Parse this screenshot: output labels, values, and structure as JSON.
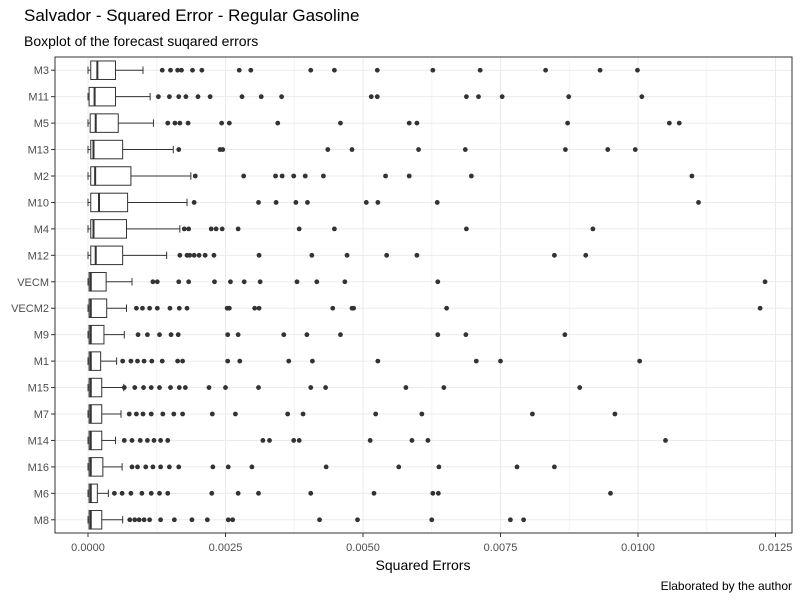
{
  "title": "Salvador - Squared Error - Regular Gasoline",
  "subtitle": "Boxplot of the forecast suqared errors",
  "caption": "Elaborated by the author",
  "colors": {
    "box_line": "#333333",
    "outlier": "#333333",
    "grid": "#ebebeb",
    "panel_border": "#333333"
  },
  "chart_data": {
    "type": "boxplot",
    "orientation": "horizontal",
    "title": "Salvador - Squared Error - Regular Gasoline",
    "subtitle": "Boxplot of the forecast suqared errors",
    "xlabel": "Squared Errors",
    "ylabel": "",
    "xlim": [
      -0.0006,
      0.0128
    ],
    "x_ticks": [
      0,
      0.0025,
      0.005,
      0.0075,
      0.01,
      0.0125
    ],
    "x_tick_labels": [
      "0.0000",
      "0.0025",
      "0.0050",
      "0.0075",
      "0.0100",
      "0.0125"
    ],
    "grid": true,
    "categories": [
      "M3",
      "M11",
      "M5",
      "M13",
      "M2",
      "M10",
      "M4",
      "M12",
      "VECM",
      "VECM2",
      "M9",
      "M1",
      "M15",
      "M7",
      "M14",
      "M16",
      "M6",
      "M8"
    ],
    "series": [
      {
        "label": "M3",
        "min": 0,
        "q1": 5e-05,
        "median": 0.00017,
        "q3": 0.0005,
        "max": 0.001,
        "outliers": [
          0.00135,
          0.0015,
          0.00163,
          0.0017,
          0.0019,
          0.00207,
          0.00275,
          0.00296,
          0.00405,
          0.00448,
          0.00526,
          0.00627,
          0.00713,
          0.00832,
          0.00931,
          0.00999
        ]
      },
      {
        "label": "M11",
        "min": 0,
        "q1": 2e-05,
        "median": 0.00012,
        "q3": 0.0005,
        "max": 0.00113,
        "outliers": [
          0.00128,
          0.00148,
          0.00165,
          0.00178,
          0.002,
          0.00222,
          0.0028,
          0.00315,
          0.00352,
          0.00515,
          0.00526,
          0.00688,
          0.0071,
          0.00753,
          0.00874,
          0.01007
        ]
      },
      {
        "label": "M5",
        "min": 0,
        "q1": 4e-05,
        "median": 0.00014,
        "q3": 0.00055,
        "max": 0.00119,
        "outliers": [
          0.00145,
          0.00158,
          0.00167,
          0.00182,
          0.00243,
          0.00257,
          0.00345,
          0.00459,
          0.00584,
          0.00598,
          0.00872,
          0.01057,
          0.01075
        ]
      },
      {
        "label": "M13",
        "min": 0,
        "q1": 5e-05,
        "median": 0.0001,
        "q3": 0.00063,
        "max": 0.00155,
        "outliers": [
          0.00165,
          0.0024,
          0.00245,
          0.00436,
          0.0048,
          0.00601,
          0.00686,
          0.00868,
          0.00945,
          0.00995
        ]
      },
      {
        "label": "M2",
        "min": 0,
        "q1": 5e-05,
        "median": 0.00013,
        "q3": 0.00078,
        "max": 0.00187,
        "outliers": [
          0.00195,
          0.00283,
          0.00341,
          0.00353,
          0.00374,
          0.00395,
          0.00428,
          0.00541,
          0.00584,
          0.00697,
          0.01098
        ]
      },
      {
        "label": "M10",
        "min": 0,
        "q1": 5e-05,
        "median": 0.0002,
        "q3": 0.00072,
        "max": 0.0018,
        "outliers": [
          0.00193,
          0.0031,
          0.00342,
          0.00378,
          0.00399,
          0.00506,
          0.00527,
          0.00635,
          0.0111
        ]
      },
      {
        "label": "M4",
        "min": 0,
        "q1": 5e-05,
        "median": 0.0001,
        "q3": 0.0007,
        "max": 0.00167,
        "outliers": [
          0.00175,
          0.00183,
          0.00224,
          0.00233,
          0.00244,
          0.00273,
          0.00384,
          0.00448,
          0.00688,
          0.00918
        ]
      },
      {
        "label": "M12",
        "min": 0,
        "q1": 5e-05,
        "median": 0.00014,
        "q3": 0.00063,
        "max": 0.00143,
        "outliers": [
          0.00167,
          0.0018,
          0.00185,
          0.00193,
          0.00202,
          0.00213,
          0.00229,
          0.00311,
          0.00407,
          0.00471,
          0.00543,
          0.00598,
          0.00848,
          0.00905
        ]
      },
      {
        "label": "VECM",
        "min": 0,
        "q1": 2e-05,
        "median": 5e-05,
        "q3": 0.00033,
        "max": 0.0008,
        "outliers": [
          0.00118,
          0.00126,
          0.00165,
          0.00183,
          0.0023,
          0.00259,
          0.00284,
          0.00313,
          0.0038,
          0.00416,
          0.00467,
          0.00636,
          0.01231
        ]
      },
      {
        "label": "VECM2",
        "min": 0,
        "q1": 2e-05,
        "median": 5e-05,
        "q3": 0.00034,
        "max": 0.0007,
        "outliers": [
          0.00088,
          0.00099,
          0.00112,
          0.00126,
          0.00149,
          0.00166,
          0.0018,
          0.00253,
          0.00257,
          0.00303,
          0.00311,
          0.00445,
          0.0048,
          0.00483,
          0.00652,
          0.01222
        ]
      },
      {
        "label": "M9",
        "min": 0,
        "q1": 2e-05,
        "median": 5e-05,
        "q3": 0.00029,
        "max": 0.00066,
        "outliers": [
          0.00091,
          0.00108,
          0.0013,
          0.00151,
          0.00164,
          0.00254,
          0.00273,
          0.00356,
          0.00398,
          0.00459,
          0.00636,
          0.00687,
          0.00867
        ]
      },
      {
        "label": "M1",
        "min": 0,
        "q1": 2e-05,
        "median": 5e-05,
        "q3": 0.00023,
        "max": 0.00052,
        "outliers": [
          0.00063,
          0.00078,
          0.0009,
          0.00102,
          0.00116,
          0.00135,
          0.00163,
          0.00172,
          0.00254,
          0.00276,
          0.00365,
          0.00408,
          0.00527,
          0.00706,
          0.0075,
          0.01003
        ]
      },
      {
        "label": "M15",
        "min": 0,
        "q1": 2e-05,
        "median": 5e-05,
        "q3": 0.00025,
        "max": 0.00065,
        "outliers": [
          0.00066,
          0.00085,
          0.00101,
          0.00115,
          0.0013,
          0.0015,
          0.00166,
          0.00177,
          0.0022,
          0.0025,
          0.0031,
          0.00405,
          0.00432,
          0.00578,
          0.00647,
          0.00894
        ]
      },
      {
        "label": "M7",
        "min": 0,
        "q1": 2e-05,
        "median": 5e-05,
        "q3": 0.00025,
        "max": 0.0006,
        "outliers": [
          0.00075,
          0.00088,
          0.001,
          0.00115,
          0.00136,
          0.00156,
          0.00172,
          0.00226,
          0.00268,
          0.00363,
          0.00391,
          0.00523,
          0.00607,
          0.00808,
          0.00958
        ]
      },
      {
        "label": "M14",
        "min": 0,
        "q1": 2e-05,
        "median": 5e-05,
        "q3": 0.00025,
        "max": 0.0005,
        "outliers": [
          0.00066,
          0.0008,
          0.00095,
          0.00108,
          0.0012,
          0.00132,
          0.00145,
          0.00318,
          0.0033,
          0.00374,
          0.00384,
          0.00513,
          0.00589,
          0.00618,
          0.0105
        ]
      },
      {
        "label": "M16",
        "min": 0,
        "q1": 2e-05,
        "median": 5e-05,
        "q3": 0.00027,
        "max": 0.00062,
        "outliers": [
          0.0008,
          0.0009,
          0.00105,
          0.00118,
          0.00132,
          0.00148,
          0.00165,
          0.00227,
          0.00255,
          0.00298,
          0.00433,
          0.00565,
          0.00638,
          0.0078,
          0.00848
        ]
      },
      {
        "label": "M6",
        "min": 0,
        "q1": 2e-05,
        "median": 5e-05,
        "q3": 0.00017,
        "max": 0.00037,
        "outliers": [
          0.00048,
          0.00062,
          0.00078,
          0.00098,
          0.00115,
          0.0013,
          0.00145,
          0.00225,
          0.00273,
          0.0031,
          0.00405,
          0.0052,
          0.00627,
          0.00637,
          0.0095
        ]
      },
      {
        "label": "M8",
        "min": 0,
        "q1": 2e-05,
        "median": 5e-05,
        "q3": 0.00025,
        "max": 0.00063,
        "outliers": [
          0.00076,
          0.00085,
          0.00093,
          0.00102,
          0.00112,
          0.00132,
          0.00157,
          0.00189,
          0.00217,
          0.00255,
          0.00263,
          0.00421,
          0.0049,
          0.00625,
          0.00768,
          0.00792
        ]
      }
    ]
  }
}
